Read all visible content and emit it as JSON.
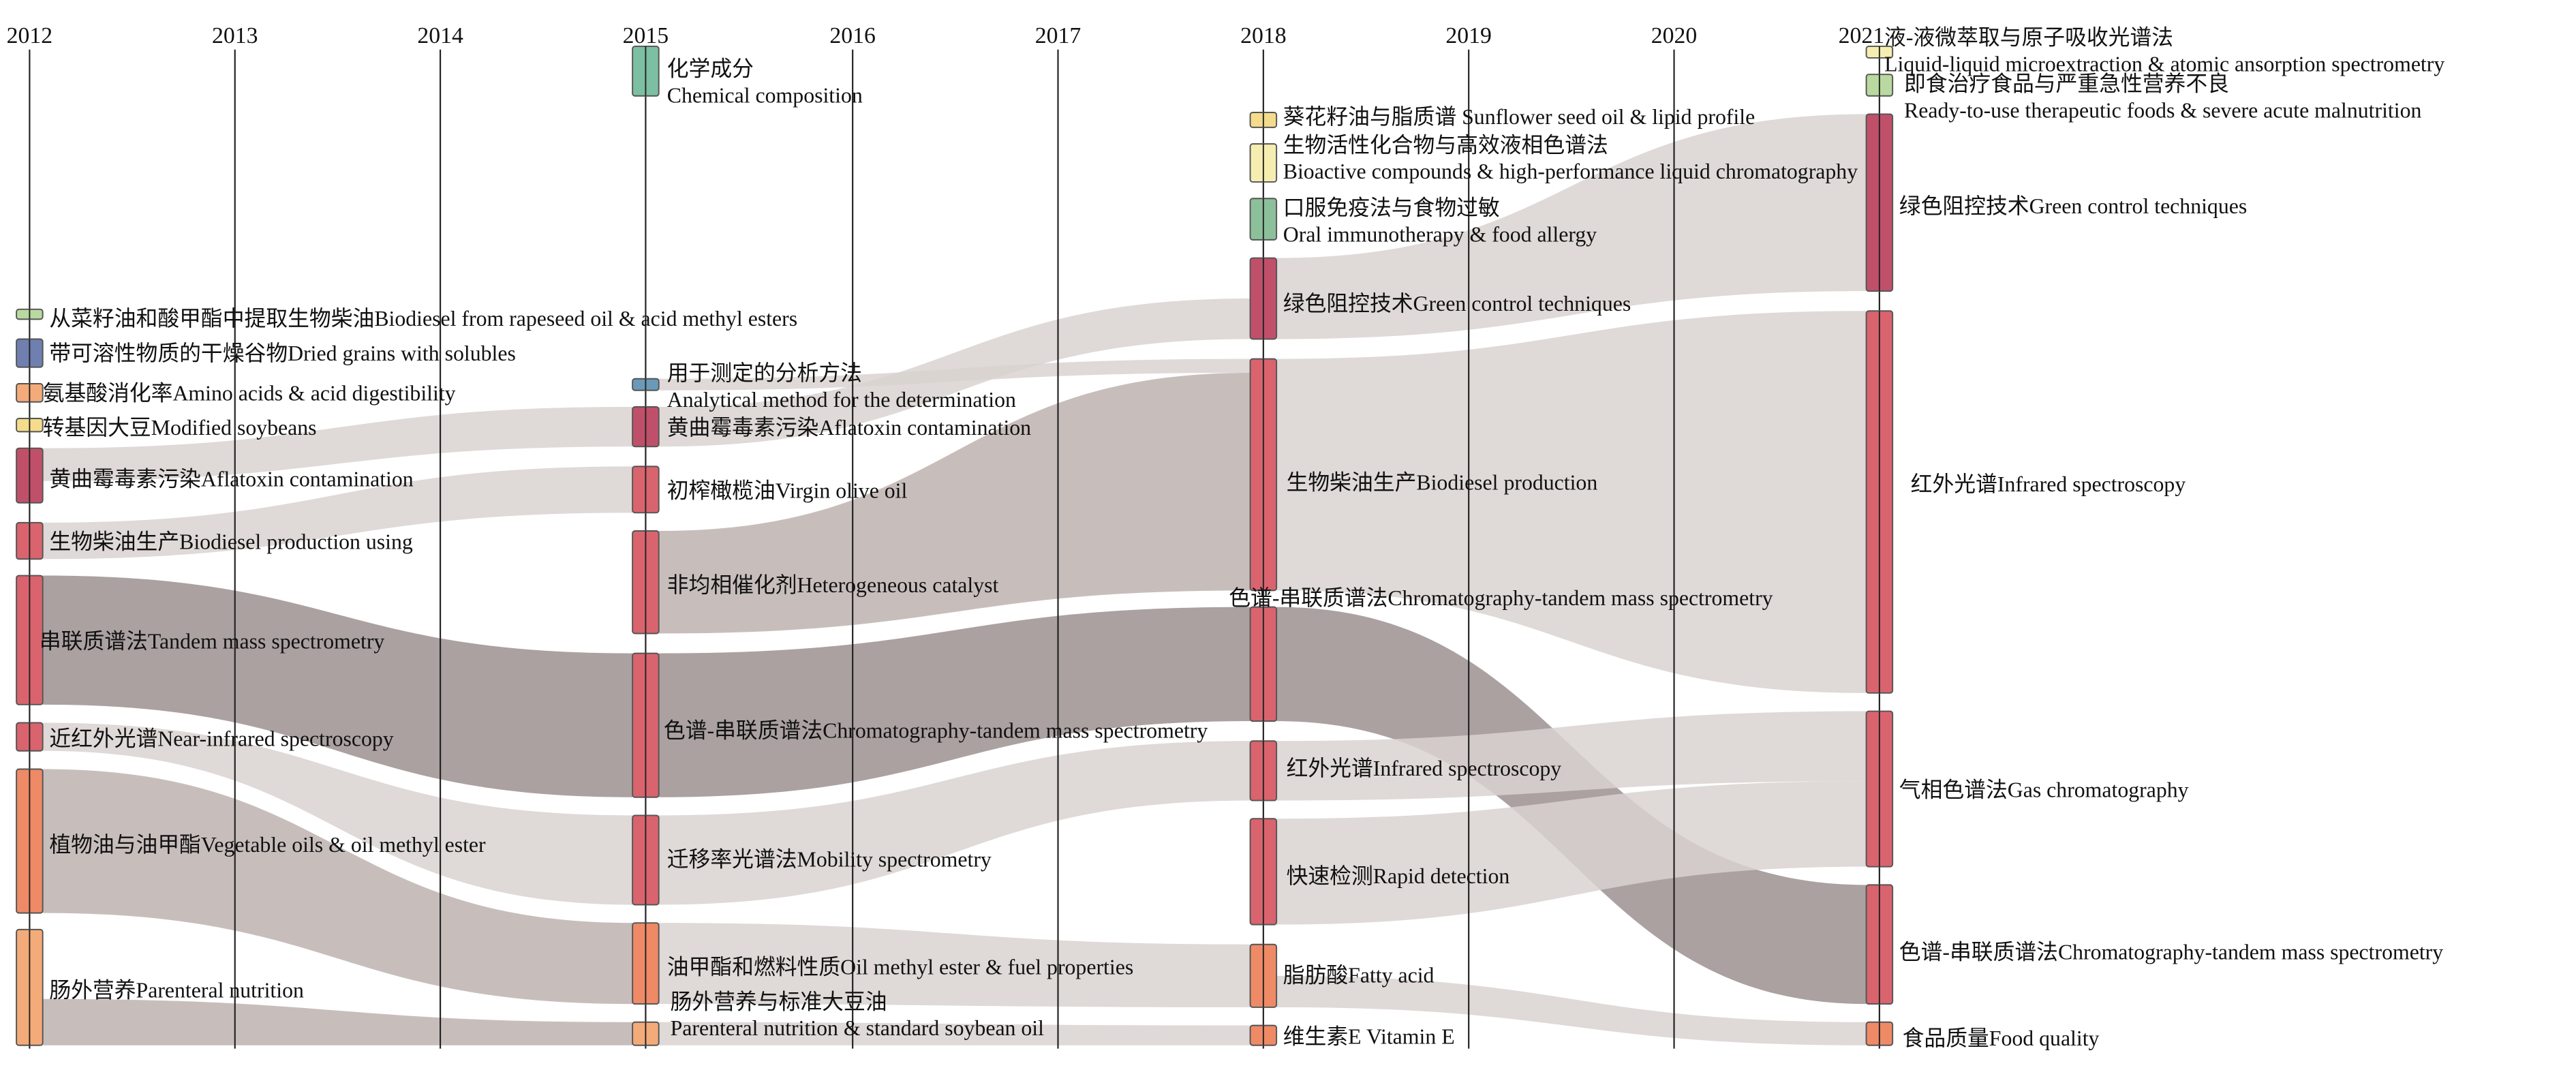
{
  "years": [
    "2012",
    "2013",
    "2014",
    "2015",
    "2016",
    "2017",
    "2018",
    "2019",
    "2020",
    "2021"
  ],
  "colors": {
    "crimson": "#c0506a",
    "red": "#d9646e",
    "orange": "#ee8a66",
    "peach": "#f4ab7a",
    "yellow": "#f4dc8c",
    "paleyellow": "#f5eeb0",
    "green": "#b9d9a0",
    "teal": "#7dbfa3",
    "mint": "#8cc09a",
    "blue": "#6f7fb0",
    "steel": "#6a9ab8",
    "link_light": "#d9d2d0",
    "link_mid": "#bdb3b0",
    "link_dark": "#9c9090"
  },
  "columns": [
    {
      "year": "2012",
      "nodes": [
        {
          "id": "a1",
          "color": "green",
          "lines": [
            "从菜籽油和酸甲酯中提取生物柴油Biodiesel from rapeseed oil & acid methyl esters"
          ]
        },
        {
          "id": "a2",
          "color": "blue",
          "lines": [
            "带可溶性物质的干燥谷物Dried grains with solubles"
          ]
        },
        {
          "id": "a3",
          "color": "peach",
          "lines": [
            "氨基酸消化率Amino acids & acid digestibility"
          ]
        },
        {
          "id": "a4",
          "color": "yellow",
          "lines": [
            "转基因大豆Modified soybeans"
          ]
        },
        {
          "id": "a5",
          "color": "crimson",
          "lines": [
            "黄曲霉毒素污染Aflatoxin contamination"
          ]
        },
        {
          "id": "a6",
          "color": "red",
          "lines": [
            "生物柴油生产Biodiesel production using"
          ]
        },
        {
          "id": "a7",
          "color": "red",
          "lines": [
            "串联质谱法Tandem mass spectrometry"
          ]
        },
        {
          "id": "a8",
          "color": "red",
          "lines": [
            "近红外光谱Near-infrared spectroscopy"
          ]
        },
        {
          "id": "a9",
          "color": "orange",
          "lines": [
            "植物油与油甲酯Vegetable oils & oil methyl ester"
          ]
        },
        {
          "id": "a10",
          "color": "peach",
          "lines": [
            "肠外营养Parenteral nutrition"
          ]
        }
      ]
    },
    {
      "year": "2015",
      "nodes": [
        {
          "id": "b1",
          "color": "teal",
          "lines": [
            "化学成分",
            "Chemical composition"
          ]
        },
        {
          "id": "b2",
          "color": "steel",
          "lines": [
            "用于测定的分析方法",
            "Analytical method for the determination"
          ]
        },
        {
          "id": "b3",
          "color": "crimson",
          "lines": [
            "黄曲霉毒素污染Aflatoxin contamination"
          ]
        },
        {
          "id": "b4",
          "color": "red",
          "lines": [
            "初榨橄榄油Virgin olive oil"
          ]
        },
        {
          "id": "b5",
          "color": "red",
          "lines": [
            "非均相催化剂Heterogeneous catalyst"
          ]
        },
        {
          "id": "b6",
          "color": "red",
          "lines": [
            "色谱-串联质谱法Chromatography-tandem mass spectrometry"
          ]
        },
        {
          "id": "b7",
          "color": "red",
          "lines": [
            "迁移率光谱法Mobility spectrometry"
          ]
        },
        {
          "id": "b8",
          "color": "orange",
          "lines": [
            "油甲酯和燃料性质Oil methyl ester & fuel properties"
          ]
        },
        {
          "id": "b9",
          "color": "peach",
          "lines": [
            "肠外营养与标准大豆油",
            "Parenteral nutrition & standard soybean oil"
          ]
        }
      ]
    },
    {
      "year": "2018",
      "nodes": [
        {
          "id": "c1",
          "color": "yellow",
          "lines": [
            "葵花籽油与脂质谱 Sunflower seed oil & lipid profile"
          ]
        },
        {
          "id": "c2",
          "color": "paleyellow",
          "lines": [
            "生物活性化合物与高效液相色谱法",
            "Bioactive compounds & high-performance liquid chromatography"
          ]
        },
        {
          "id": "c3",
          "color": "mint",
          "lines": [
            "口服免疫法与食物过敏",
            "Oral immunotherapy & food allergy"
          ]
        },
        {
          "id": "c4",
          "color": "crimson",
          "lines": [
            "绿色阻控技术Green control techniques"
          ]
        },
        {
          "id": "c5",
          "color": "red",
          "lines": [
            "生物柴油生产Biodiesel production"
          ]
        },
        {
          "id": "c6",
          "color": "red",
          "lines": [
            "色谱-串联质谱法Chromatography-tandem mass spectrometry"
          ]
        },
        {
          "id": "c7",
          "color": "red",
          "lines": [
            "红外光谱Infrared spectroscopy"
          ]
        },
        {
          "id": "c8",
          "color": "red",
          "lines": [
            "快速检测Rapid detection"
          ]
        },
        {
          "id": "c9",
          "color": "orange",
          "lines": [
            "脂肪酸Fatty acid"
          ]
        },
        {
          "id": "c10",
          "color": "orange",
          "lines": [
            "维生素E Vitamin E"
          ]
        }
      ]
    },
    {
      "year": "2021",
      "nodes": [
        {
          "id": "d1",
          "color": "paleyellow",
          "lines": [
            "液-液微萃取与原子吸收光谱法",
            "Liquid-liquid microextraction & atomic ansorption spectrometry"
          ]
        },
        {
          "id": "d2",
          "color": "green",
          "lines": [
            "即食治疗食品与严重急性营养不良",
            "Ready-to-use therapeutic foods & severe acute malnutrition"
          ]
        },
        {
          "id": "d3",
          "color": "crimson",
          "lines": [
            "绿色阻控技术Green control techniques"
          ]
        },
        {
          "id": "d4",
          "color": "red",
          "lines": [
            "红外光谱Infrared spectroscopy"
          ]
        },
        {
          "id": "d5",
          "color": "red",
          "lines": [
            "气相色谱法Gas chromatography"
          ]
        },
        {
          "id": "d6",
          "color": "red",
          "lines": [
            "色谱-串联质谱法Chromatography-tandem mass spectrometry"
          ]
        },
        {
          "id": "d7",
          "color": "orange",
          "lines": [
            "食品质量Food quality"
          ]
        }
      ]
    }
  ],
  "links": [
    {
      "from": "a5",
      "to": "b3",
      "tone": "link_light"
    },
    {
      "from": "a6",
      "to": "b4",
      "tone": "link_light"
    },
    {
      "from": "a7",
      "to": "b6",
      "tone": "link_dark"
    },
    {
      "from": "a8",
      "to": "b7",
      "tone": "link_light"
    },
    {
      "from": "a9",
      "to": "b8",
      "tone": "link_mid"
    },
    {
      "from": "a10",
      "to": "b9",
      "tone": "link_mid"
    },
    {
      "from": "b2",
      "to": "c5",
      "tone": "link_light"
    },
    {
      "from": "b3",
      "to": "c4",
      "tone": "link_light"
    },
    {
      "from": "b5",
      "to": "c5",
      "tone": "link_mid"
    },
    {
      "from": "b6",
      "to": "c6",
      "tone": "link_dark"
    },
    {
      "from": "b7",
      "to": "c7",
      "tone": "link_light"
    },
    {
      "from": "b8",
      "to": "c9",
      "tone": "link_light"
    },
    {
      "from": "b9",
      "to": "c10",
      "tone": "link_light"
    },
    {
      "from": "c4",
      "to": "d3",
      "tone": "link_light"
    },
    {
      "from": "c5",
      "to": "d4",
      "tone": "link_light"
    },
    {
      "from": "c6",
      "to": "d6",
      "tone": "link_dark"
    },
    {
      "from": "c7",
      "to": "d5",
      "tone": "link_light"
    },
    {
      "from": "c8",
      "to": "d5",
      "tone": "link_light"
    },
    {
      "from": "c9",
      "to": "d7",
      "tone": "link_light"
    }
  ]
}
